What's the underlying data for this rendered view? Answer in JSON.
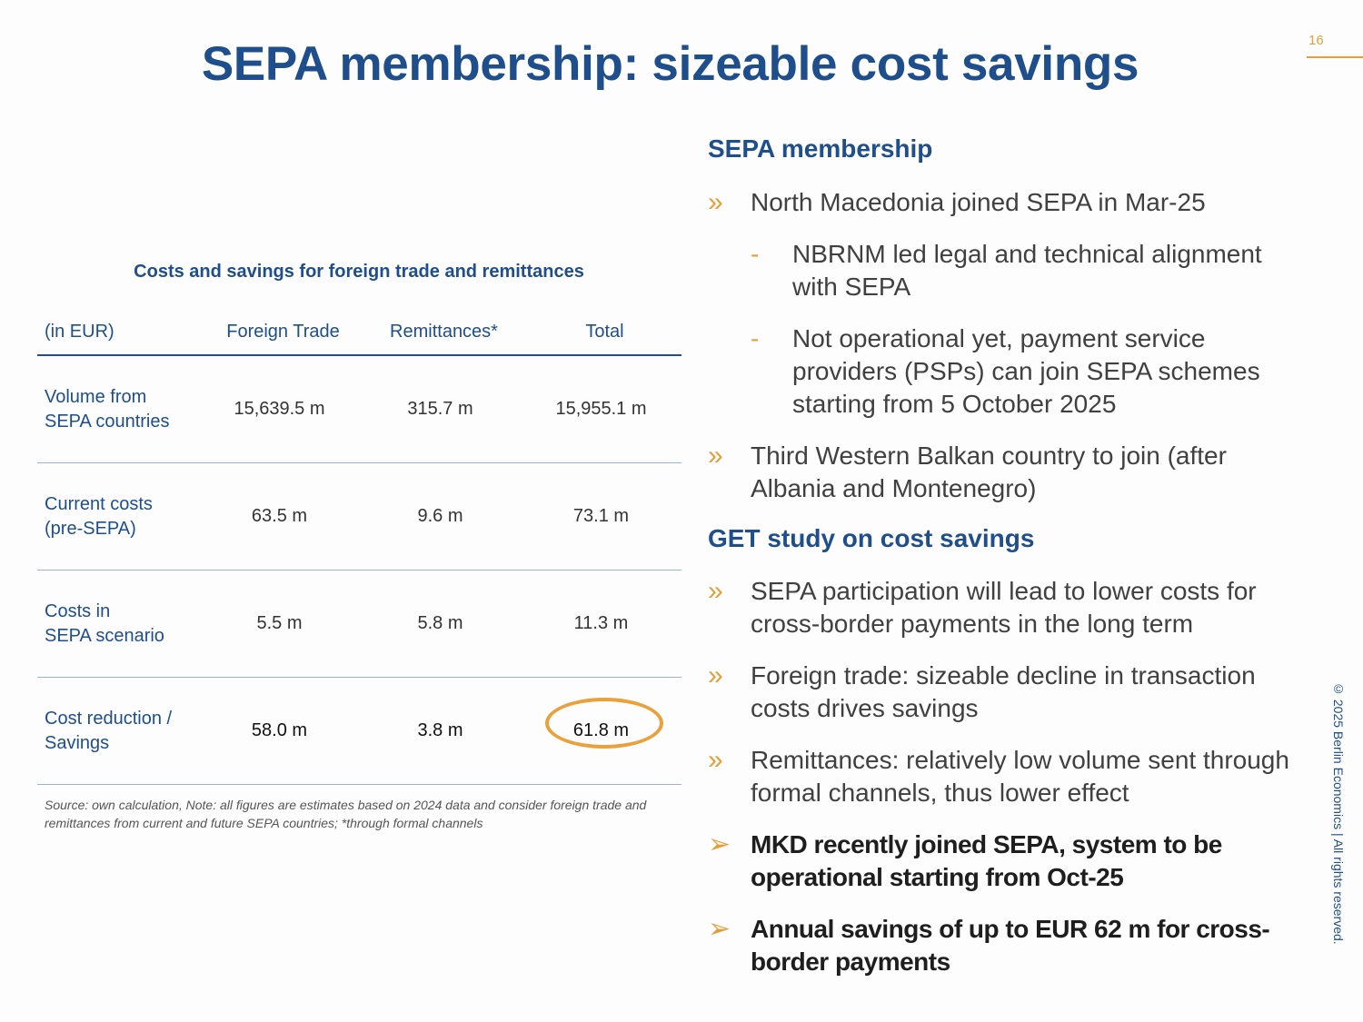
{
  "page_number": "16",
  "title": "SEPA membership: sizeable cost savings",
  "table": {
    "title": "Costs and savings for foreign trade and remittances",
    "headers": [
      "(in EUR)",
      "Foreign Trade",
      "Remittances*",
      "Total"
    ],
    "rows": [
      {
        "label_line1": "Volume from",
        "label_line2": "SEPA countries",
        "foreign_trade": "15,639.5 m",
        "remittances": "315.7 m",
        "total": "15,955.1 m"
      },
      {
        "label_line1": "Current costs",
        "label_line2": "(pre-SEPA)",
        "foreign_trade": "63.5 m",
        "remittances": "9.6 m",
        "total": "73.1 m"
      },
      {
        "label_line1": "Costs in",
        "label_line2": "SEPA scenario",
        "foreign_trade": "5.5 m",
        "remittances": "5.8 m",
        "total": "11.3 m"
      },
      {
        "label_line1": "Cost reduction /",
        "label_line2": "Savings",
        "foreign_trade": "58.0 m",
        "remittances": "3.8 m",
        "total": "61.8 m"
      }
    ],
    "source_note": "Source: own calculation, Note: all figures are estimates based on 2024 data and consider foreign trade and remittances from current and future SEPA countries; *through formal channels"
  },
  "sections": {
    "membership_heading": "SEPA membership",
    "membership_bullets": [
      "North Macedonia joined SEPA in Mar-25",
      "Third Western Balkan country to join (after Albania and Montenegro)"
    ],
    "membership_sub_bullets": [
      "NBRNM led legal and technical alignment with SEPA",
      "Not operational yet, payment service providers (PSPs) can join SEPA schemes starting from 5 October 2025"
    ],
    "study_heading": "GET study on cost savings",
    "study_bullets": [
      "SEPA participation will lead to lower costs for cross-border payments in the long term",
      "Foreign trade: sizeable decline in transaction costs drives savings",
      "Remittances: relatively low volume sent through formal channels, thus lower effect"
    ],
    "conclusions": [
      "MKD recently joined SEPA, system to be operational starting from Oct-25",
      "Annual savings of up to EUR 62 m for cross-border payments"
    ]
  },
  "markers": {
    "chevron": "»",
    "dash": "-",
    "arrow": "➢"
  },
  "copyright": "© 2025 Berlin Economics | All rights reserved.",
  "colors": {
    "brand_blue": "#1f4e8c",
    "accent_orange": "#e3a03a",
    "text_gray": "#404040"
  }
}
